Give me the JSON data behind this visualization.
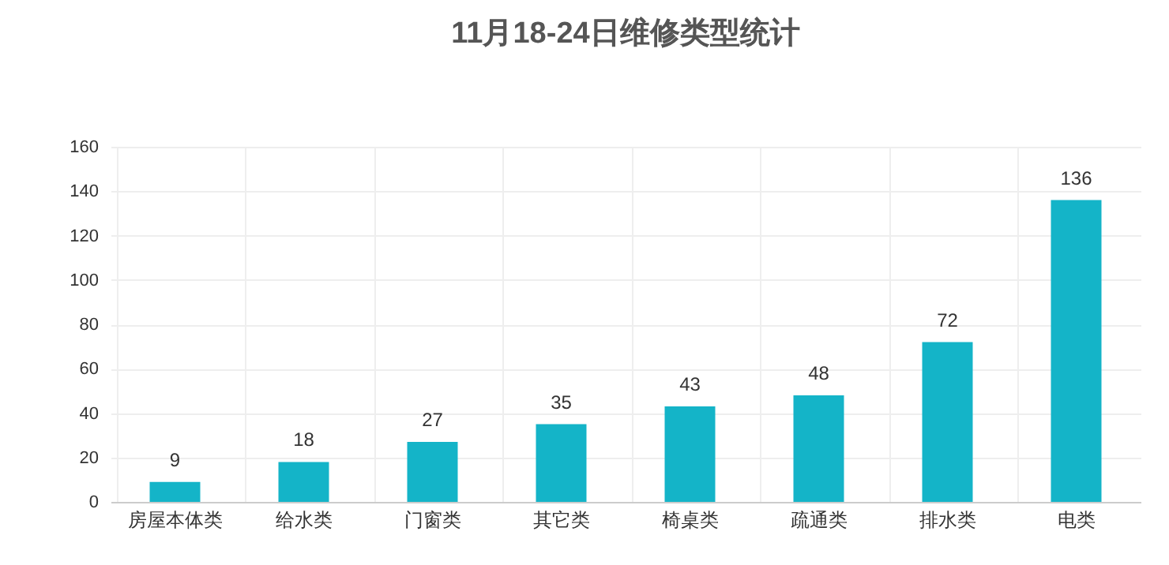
{
  "chart_data": {
    "type": "bar",
    "title": "11月18-24日维修类型统计",
    "categories": [
      "房屋本体类",
      "给水类",
      "门窗类",
      "其它类",
      "椅桌类",
      "疏通类",
      "排水类",
      "电类"
    ],
    "values": [
      9,
      18,
      27,
      35,
      43,
      48,
      72,
      136
    ],
    "color": "#14b4c8",
    "ylim": [
      0,
      160
    ],
    "yticks": [
      0,
      20,
      40,
      60,
      80,
      100,
      120,
      140,
      160
    ],
    "grid": true,
    "data_labels": true
  }
}
